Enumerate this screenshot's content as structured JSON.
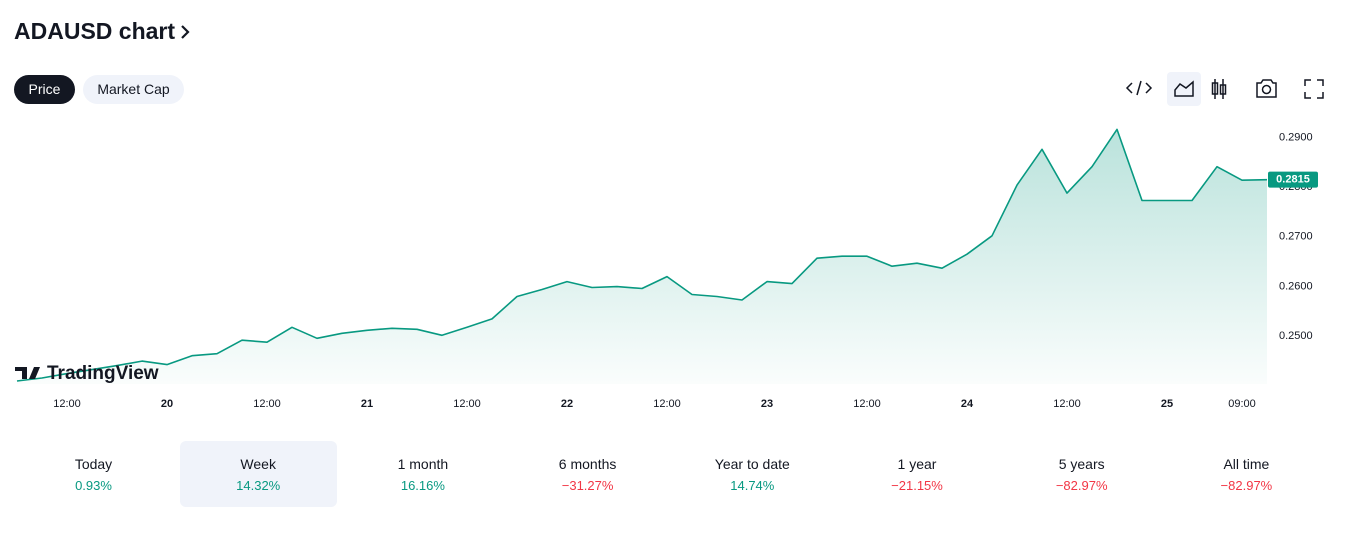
{
  "header": {
    "title": "ADAUSD chart"
  },
  "tabs": [
    {
      "label": "Price",
      "active": true
    },
    {
      "label": "Market Cap",
      "active": false
    }
  ],
  "chart_data": {
    "type": "area",
    "color": "#089981",
    "watermark": "TradingView",
    "categories": [
      null,
      null,
      "12:00",
      null,
      null,
      null,
      "20",
      null,
      null,
      null,
      "12:00",
      null,
      null,
      null,
      "21",
      null,
      null,
      null,
      "12:00",
      null,
      null,
      null,
      "22",
      null,
      null,
      null,
      "12:00",
      null,
      null,
      null,
      "23",
      null,
      null,
      null,
      "12:00",
      null,
      null,
      null,
      "24",
      null,
      null,
      null,
      "12:00",
      null,
      null,
      null,
      "25",
      null,
      null,
      "09:00",
      null
    ],
    "values": [
      0.241,
      0.2416,
      0.2425,
      0.2433,
      0.2441,
      0.245,
      0.2443,
      0.2461,
      0.2465,
      0.2492,
      0.2488,
      0.2518,
      0.2496,
      0.2506,
      0.2512,
      0.2516,
      0.2514,
      0.2502,
      0.2518,
      0.2535,
      0.258,
      0.2594,
      0.261,
      0.2598,
      0.26,
      0.2596,
      0.262,
      0.2584,
      0.258,
      0.2573,
      0.261,
      0.2606,
      0.2657,
      0.2661,
      0.2661,
      0.2641,
      0.2647,
      0.2637,
      0.2665,
      0.2702,
      0.2804,
      0.2876,
      0.2788,
      0.2841,
      0.2916,
      0.2773,
      0.2773,
      0.2773,
      0.2841,
      0.2814,
      0.2815
    ],
    "ylim": [
      0.2404,
      0.2935
    ],
    "yticks": [
      {
        "value": 0.25,
        "label": "0.2500"
      },
      {
        "value": 0.26,
        "label": "0.2600"
      },
      {
        "value": 0.27,
        "label": "0.2700"
      },
      {
        "value": 0.28,
        "label": "0.2800"
      },
      {
        "value": 0.29,
        "label": "0.2900"
      }
    ],
    "price_label": {
      "value": 0.2815,
      "label": "0.2815"
    }
  },
  "periods": [
    {
      "label": "Today",
      "change": "0.93%",
      "selected": false
    },
    {
      "label": "Week",
      "change": "14.32%",
      "selected": true
    },
    {
      "label": "1 month",
      "change": "16.16%",
      "selected": false
    },
    {
      "label": "6 months",
      "change": "−31.27%",
      "selected": false
    },
    {
      "label": "Year to date",
      "change": "14.74%",
      "selected": false
    },
    {
      "label": "1 year",
      "change": "−21.15%",
      "selected": false
    },
    {
      "label": "5 years",
      "change": "−82.97%",
      "selected": false
    },
    {
      "label": "All time",
      "change": "−82.97%",
      "selected": false
    }
  ]
}
